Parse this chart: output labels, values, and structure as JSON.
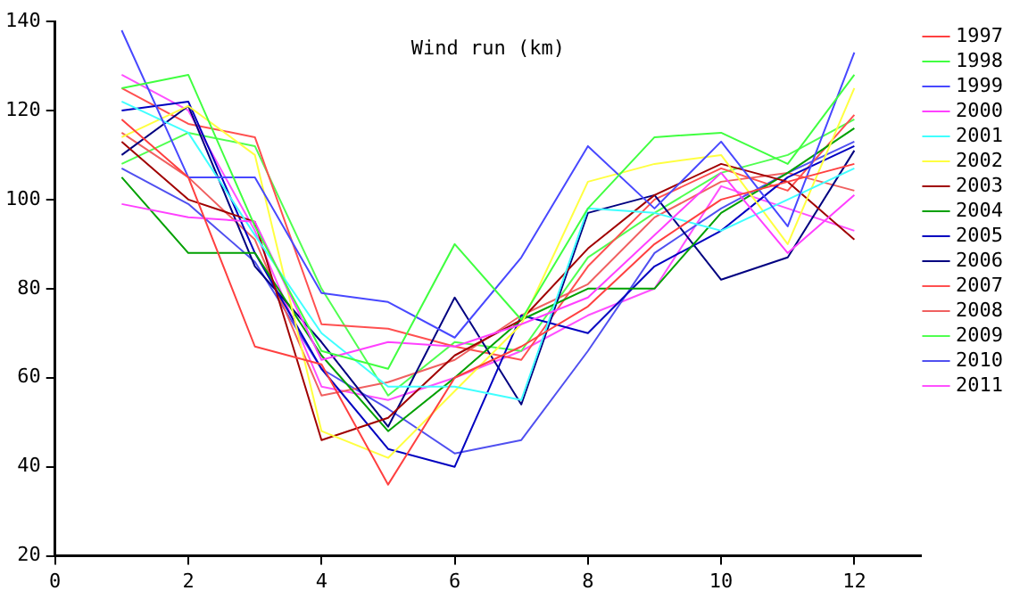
{
  "chart_data": {
    "type": "line",
    "title": "Wind run (km)",
    "x": [
      1,
      2,
      3,
      4,
      5,
      6,
      7,
      8,
      9,
      10,
      11,
      12
    ],
    "xlim": [
      0,
      13
    ],
    "xticks": [
      0,
      2,
      4,
      6,
      8,
      10,
      12
    ],
    "ylim": [
      20,
      140
    ],
    "yticks": [
      20,
      40,
      60,
      80,
      100,
      120,
      140
    ],
    "legend": "right",
    "marker": "none",
    "line_style": "solid",
    "series": [
      {
        "name": "1997",
        "color": "#ff4040",
        "values": [
          118,
          105,
          67,
          63,
          36,
          60,
          67,
          76,
          90,
          100,
          104,
          108
        ]
      },
      {
        "name": "1998",
        "color": "#40ff40",
        "values": [
          125,
          128,
          94,
          66,
          62,
          90,
          73,
          98,
          114,
          115,
          108,
          128
        ]
      },
      {
        "name": "1999",
        "color": "#4848ff",
        "values": [
          138,
          105,
          105,
          79,
          77,
          69,
          87,
          112,
          98,
          113,
          94,
          133
        ]
      },
      {
        "name": "2000",
        "color": "#ff40ff",
        "values": [
          99,
          96,
          95,
          64,
          68,
          67,
          72,
          78,
          92,
          106,
          88,
          101
        ]
      },
      {
        "name": "2001",
        "color": "#40ffff",
        "values": [
          122,
          115,
          92,
          70,
          58,
          58,
          55,
          98,
          97,
          93,
          100,
          107
        ]
      },
      {
        "name": "2002",
        "color": "#ffff40",
        "values": [
          114,
          121,
          110,
          48,
          42,
          57,
          72,
          104,
          108,
          110,
          90,
          125
        ]
      },
      {
        "name": "2003",
        "color": "#a00000",
        "values": [
          113,
          100,
          95,
          46,
          51,
          65,
          73,
          89,
          101,
          108,
          104,
          91
        ]
      },
      {
        "name": "2004",
        "color": "#00a000",
        "values": [
          105,
          88,
          88,
          65,
          48,
          60,
          73,
          80,
          80,
          97,
          106,
          116
        ]
      },
      {
        "name": "2005",
        "color": "#0000c0",
        "values": [
          120,
          122,
          88,
          62,
          44,
          40,
          74,
          70,
          85,
          93,
          105,
          112
        ]
      },
      {
        "name": "2006",
        "color": "#000080",
        "values": [
          110,
          121,
          85,
          68,
          49,
          78,
          54,
          97,
          101,
          82,
          87,
          111
        ]
      },
      {
        "name": "2007",
        "color": "#ff5050",
        "values": [
          125,
          117,
          114,
          72,
          71,
          67,
          64,
          85,
          100,
          107,
          102,
          119
        ]
      },
      {
        "name": "2008",
        "color": "#f06060",
        "values": [
          115,
          105,
          91,
          56,
          59,
          64,
          74,
          81,
          96,
          104,
          106,
          102
        ]
      },
      {
        "name": "2009",
        "color": "#50ff50",
        "values": [
          108,
          115,
          112,
          80,
          56,
          68,
          66,
          87,
          97,
          106,
          110,
          118
        ]
      },
      {
        "name": "2010",
        "color": "#5050f0",
        "values": [
          107,
          99,
          86,
          62,
          53,
          43,
          46,
          66,
          88,
          98,
          106,
          113
        ]
      },
      {
        "name": "2011",
        "color": "#ff50ff",
        "values": [
          128,
          120,
          93,
          58,
          55,
          60,
          66,
          74,
          80,
          103,
          98,
          93
        ]
      }
    ]
  }
}
